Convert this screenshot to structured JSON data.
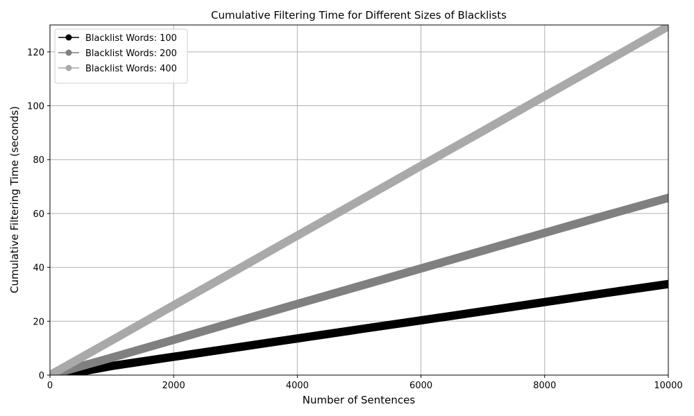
{
  "chart_data": {
    "type": "line",
    "title": "Cumulative Filtering Time for Different Sizes of Blacklists",
    "xlabel": "Number of Sentences",
    "ylabel": "Cumulative Filtering Time (seconds)",
    "xlim": [
      0,
      10000
    ],
    "ylim": [
      0,
      130
    ],
    "xticks": [
      0,
      2000,
      4000,
      6000,
      8000,
      10000
    ],
    "yticks": [
      0,
      20,
      40,
      60,
      80,
      100,
      120
    ],
    "grid": true,
    "legend_position": "top-left",
    "series": [
      {
        "name": "Blacklist Words: 100",
        "color": "#000000",
        "x": [
          200,
          1000,
          2000,
          3000,
          4000,
          5000,
          6000,
          7000,
          8000,
          9000,
          10000
        ],
        "y": [
          0,
          3.4,
          6.8,
          10.2,
          13.6,
          17.0,
          20.3,
          23.7,
          27.1,
          30.5,
          33.8
        ]
      },
      {
        "name": "Blacklist Words: 200",
        "color": "#808080",
        "x": [
          0,
          500,
          1000,
          2000,
          3000,
          4000,
          5000,
          6000,
          7000,
          8000,
          9000,
          10000
        ],
        "y": [
          0,
          3.3,
          6.5,
          13.1,
          19.8,
          26.4,
          33.0,
          39.6,
          46.2,
          52.8,
          59.4,
          65.8
        ]
      },
      {
        "name": "Blacklist Words: 400",
        "color": "#a9a9a9",
        "x": [
          0,
          1000,
          2000,
          3000,
          4000,
          5000,
          6000,
          7000,
          8000,
          9000,
          10000
        ],
        "y": [
          0,
          12.9,
          25.9,
          38.8,
          51.8,
          64.7,
          77.7,
          90.6,
          103.6,
          116.5,
          129.5
        ]
      }
    ]
  }
}
